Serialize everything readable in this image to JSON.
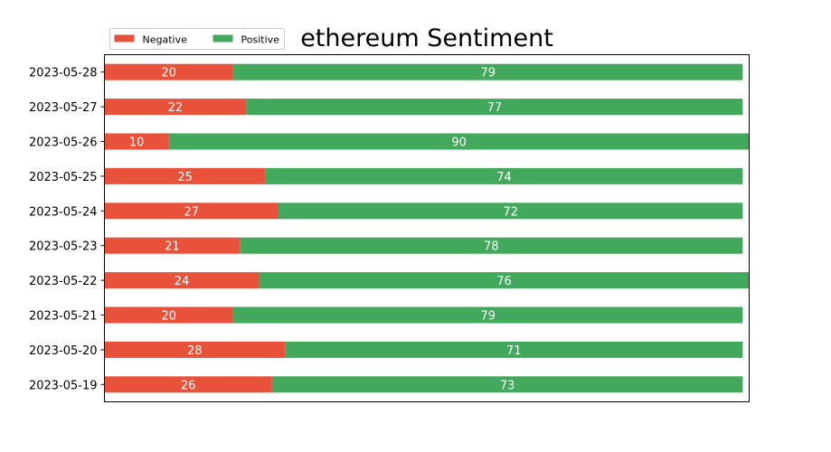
{
  "chart_data": {
    "type": "bar",
    "orientation": "horizontal",
    "stacked": true,
    "title": "ethereum Sentiment",
    "categories": [
      "2023-05-28",
      "2023-05-27",
      "2023-05-26",
      "2023-05-25",
      "2023-05-24",
      "2023-05-23",
      "2023-05-22",
      "2023-05-21",
      "2023-05-20",
      "2023-05-19"
    ],
    "series": [
      {
        "name": "Negative",
        "color": "#e8513a",
        "values": [
          20,
          22,
          10,
          25,
          27,
          21,
          24,
          20,
          28,
          26
        ]
      },
      {
        "name": "Positive",
        "color": "#41a85c",
        "values": [
          79,
          77,
          90,
          74,
          72,
          78,
          76,
          79,
          71,
          73
        ]
      }
    ],
    "xlim": [
      0,
      100
    ],
    "x_ticks_shown": false,
    "grid": false,
    "legend_position": "top-left"
  }
}
